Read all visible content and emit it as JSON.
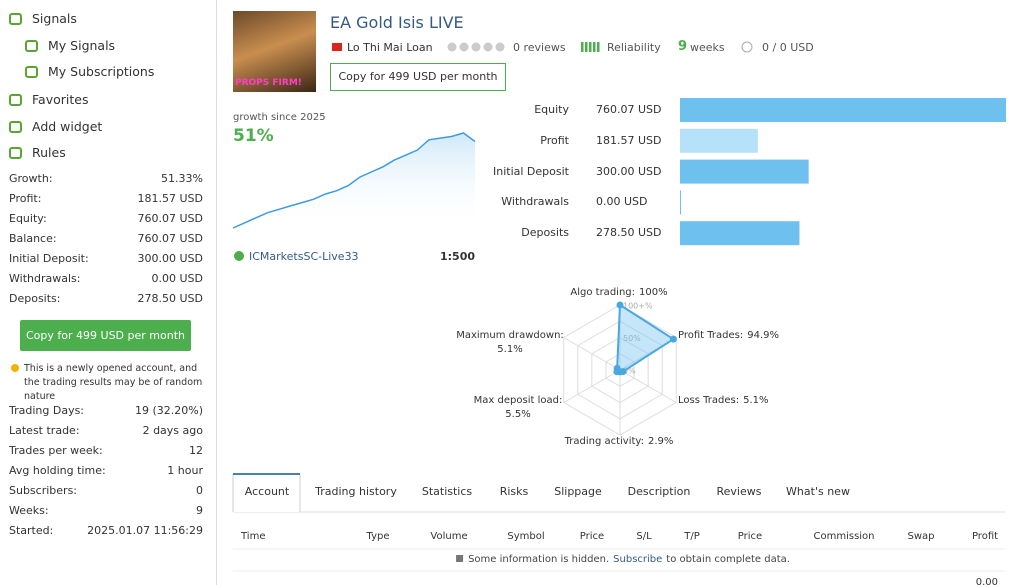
{
  "sidebar": {
    "nav": [
      "Signals",
      "My Signals",
      "My Subscriptions",
      "Favorites",
      "Add widget",
      "Rules"
    ],
    "stats": [
      [
        "Growth:",
        "51.33%"
      ],
      [
        "Profit:",
        "181.57 USD"
      ],
      [
        "Equity:",
        "760.07 USD"
      ],
      [
        "Balance:",
        "760.07 USD"
      ],
      [
        "Initial Deposit:",
        "300.00 USD"
      ],
      [
        "Withdrawals:",
        "0.00 USD"
      ],
      [
        "Deposits:",
        "278.50 USD"
      ]
    ],
    "copy_button": "Copy for 499 USD per month",
    "notice": "This is a newly opened account, and the trading results may be of random nature",
    "details": [
      [
        "Trading Days:",
        "19 (32.20%)"
      ],
      [
        "Latest trade:",
        "2 days ago"
      ],
      [
        "Trades per week:",
        "12"
      ],
      [
        "Avg holding time:",
        "1 hour"
      ],
      [
        "Subscribers:",
        "0"
      ],
      [
        "Weeks:",
        "9"
      ],
      [
        "Started:",
        "2025.01.07 11:56:29"
      ]
    ]
  },
  "header": {
    "avatar_caption": "PROPS FIRM!",
    "title": "EA Gold Isis LIVE",
    "author": "Lo Thi Mai Loan",
    "reviews": "0 reviews",
    "reliability": "Reliability",
    "weeks_value": "9",
    "weeks_label": "weeks",
    "subscribers": "0 / 0 USD",
    "copy_button": "Copy for 499 USD per month"
  },
  "growth": {
    "label": "growth since 2025",
    "value": "51%",
    "curve": [
      0,
      3,
      6,
      9,
      11,
      13,
      15,
      17,
      20,
      22,
      25,
      30,
      33,
      36,
      40,
      43,
      46,
      52,
      53,
      54,
      56,
      51
    ],
    "broker": "ICMarketsSC-Live33",
    "leverage": "1:500"
  },
  "balance_chart": {
    "type": "bar",
    "categories": [
      "Equity",
      "Profit",
      "Initial Deposit",
      "Withdrawals",
      "Deposits"
    ],
    "values": [
      760.07,
      181.57,
      300.0,
      0.0,
      278.5
    ],
    "value_labels": [
      "760.07 USD",
      "181.57 USD",
      "300.00 USD",
      "0.00 USD",
      "278.50 USD"
    ],
    "colors": [
      "#6ec1ee",
      "#b5e2f8",
      "#6ec1ee",
      "#6ec1ee",
      "#6ec1ee"
    ]
  },
  "radar_chart": {
    "type": "radar",
    "axes": [
      {
        "label": "Algo trading:",
        "value": 100,
        "value_label": "100%"
      },
      {
        "label": "Profit Trades:",
        "value": 94.9,
        "value_label": "94.9%"
      },
      {
        "label": "Loss Trades:",
        "value": 5.1,
        "value_label": "5.1%"
      },
      {
        "label": "Trading activity:",
        "value": 2.9,
        "value_label": "2.9%"
      },
      {
        "label": "Max deposit load:",
        "value": 5.5,
        "value_label": "5.5%"
      },
      {
        "label": "Maximum drawdown:",
        "value": 5.1,
        "value_label": "5.1%"
      }
    ],
    "rlim": [
      0,
      100
    ],
    "rticks": [
      {
        "value": 100,
        "label": "100+%"
      },
      {
        "value": 50,
        "label": "50%"
      },
      {
        "value": 0,
        "label": "0%"
      }
    ],
    "color": "#4aa8e0"
  },
  "tabs": [
    "Account",
    "Trading history",
    "Statistics",
    "Risks",
    "Slippage",
    "Description",
    "Reviews",
    "What's new"
  ],
  "table": {
    "columns": [
      "Time",
      "Type",
      "Volume",
      "Symbol",
      "Price",
      "S/L",
      "T/P",
      "Price",
      "Commission",
      "Swap",
      "Profit"
    ],
    "notice": [
      "Some information is hidden.",
      "Subscribe",
      "to obtain complete data."
    ],
    "total": "0.00"
  }
}
